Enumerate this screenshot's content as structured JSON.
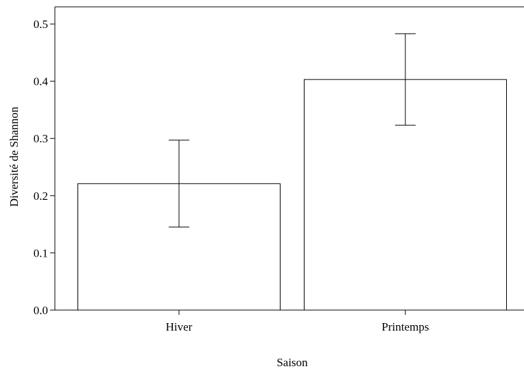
{
  "chart_data": {
    "type": "bar",
    "categories": [
      "Hiver",
      "Printemps"
    ],
    "values": [
      0.221,
      0.403
    ],
    "error_low": [
      0.145,
      0.323
    ],
    "error_high": [
      0.297,
      0.483
    ],
    "title": "",
    "xlabel": "Saison",
    "ylabel": "Diversité de Shannon",
    "ylim": [
      0,
      0.53
    ],
    "yticks": [
      "0.0",
      "0.1",
      "0.2",
      "0.3",
      "0.4",
      "0.5"
    ],
    "grid": false,
    "bar_fill": "#ffffff",
    "bar_stroke": "#000000"
  }
}
